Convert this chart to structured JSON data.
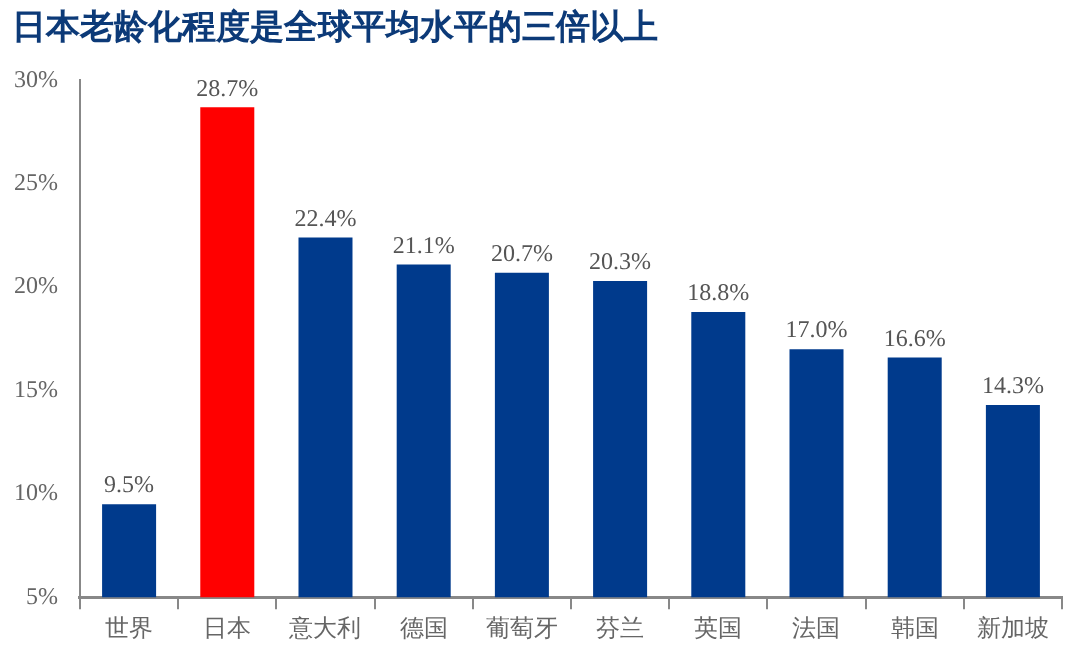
{
  "chart_data": {
    "type": "bar",
    "title": "日本老龄化程度是全球平均水平的三倍以上",
    "categories": [
      "世界",
      "日本",
      "意大利",
      "德国",
      "葡萄牙",
      "芬兰",
      "英国",
      "法国",
      "韩国",
      "新加坡"
    ],
    "values": [
      9.5,
      28.7,
      22.4,
      21.1,
      20.7,
      20.3,
      18.8,
      17.0,
      16.6,
      14.3
    ],
    "colors": [
      "#003a8c",
      "#ff0000",
      "#003a8c",
      "#003a8c",
      "#003a8c",
      "#003a8c",
      "#003a8c",
      "#003a8c",
      "#003a8c",
      "#003a8c"
    ],
    "value_labels": [
      "9.5%",
      "28.7%",
      "22.4%",
      "21.1%",
      "20.7%",
      "20.3%",
      "18.8%",
      "17.0%",
      "16.6%",
      "14.3%"
    ],
    "ylim": [
      5,
      30
    ],
    "yticks": [
      {
        "value": 5,
        "label": "5%"
      },
      {
        "value": 10,
        "label": "10%"
      },
      {
        "value": 15,
        "label": "15%"
      },
      {
        "value": 20,
        "label": "20%"
      },
      {
        "value": 25,
        "label": "25%"
      },
      {
        "value": 30,
        "label": "30%"
      }
    ],
    "grid": false,
    "legend": false
  }
}
